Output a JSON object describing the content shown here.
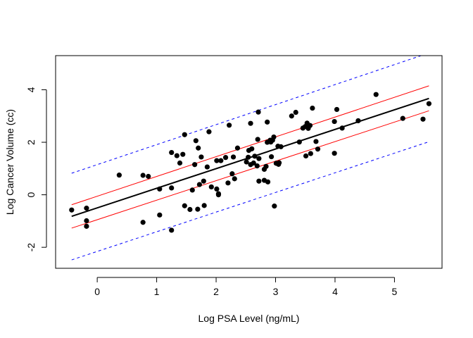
{
  "chart_data": {
    "type": "scatter",
    "title": "",
    "xlabel": "Log PSA Level (ng/mL)",
    "ylabel": "Log Cancer Volume (cc)",
    "xlim": [
      -0.7,
      5.8
    ],
    "ylim": [
      -2.8,
      5.3
    ],
    "xticks": [
      0,
      1,
      2,
      3,
      4,
      5
    ],
    "xtick_labels": [
      "0",
      "1",
      "2",
      "3",
      "4",
      "5"
    ],
    "yticks": [
      -2,
      0,
      2,
      4
    ],
    "ytick_labels": [
      "-2",
      "0",
      "2",
      "4"
    ],
    "grid": false,
    "legend": "none",
    "points": [
      {
        "x": -0.43,
        "y": -0.58
      },
      {
        "x": -0.18,
        "y": -0.51
      },
      {
        "x": -0.18,
        "y": -0.99
      },
      {
        "x": -0.18,
        "y": -1.2
      },
      {
        "x": 0.37,
        "y": 0.75
      },
      {
        "x": 0.77,
        "y": 0.74
      },
      {
        "x": 0.77,
        "y": -1.05
      },
      {
        "x": 0.86,
        "y": 0.7
      },
      {
        "x": 1.05,
        "y": 0.22
      },
      {
        "x": 1.05,
        "y": -0.77
      },
      {
        "x": 1.25,
        "y": 1.61
      },
      {
        "x": 1.25,
        "y": 0.26
      },
      {
        "x": 1.25,
        "y": -1.35
      },
      {
        "x": 1.34,
        "y": 1.49
      },
      {
        "x": 1.39,
        "y": 1.21
      },
      {
        "x": 1.44,
        "y": 1.54
      },
      {
        "x": 1.47,
        "y": 2.29
      },
      {
        "x": 1.47,
        "y": -0.42
      },
      {
        "x": 1.56,
        "y": -0.56
      },
      {
        "x": 1.6,
        "y": 0.18
      },
      {
        "x": 1.64,
        "y": 1.15
      },
      {
        "x": 1.66,
        "y": 2.06
      },
      {
        "x": 1.69,
        "y": -0.55
      },
      {
        "x": 1.7,
        "y": 1.78
      },
      {
        "x": 1.72,
        "y": 0.39
      },
      {
        "x": 1.75,
        "y": 1.44
      },
      {
        "x": 1.79,
        "y": 0.52
      },
      {
        "x": 1.8,
        "y": -0.41
      },
      {
        "x": 1.85,
        "y": 1.06
      },
      {
        "x": 1.88,
        "y": 2.4
      },
      {
        "x": 1.92,
        "y": 0.3
      },
      {
        "x": 2.01,
        "y": 1.3
      },
      {
        "x": 2.01,
        "y": 0.22
      },
      {
        "x": 2.04,
        "y": 0.0
      },
      {
        "x": 2.04,
        "y": 0.04
      },
      {
        "x": 2.08,
        "y": 1.3
      },
      {
        "x": 2.16,
        "y": 1.42
      },
      {
        "x": 2.2,
        "y": 0.45
      },
      {
        "x": 2.22,
        "y": 2.65
      },
      {
        "x": 2.27,
        "y": 0.8
      },
      {
        "x": 2.29,
        "y": 1.44
      },
      {
        "x": 2.31,
        "y": 0.61
      },
      {
        "x": 2.36,
        "y": 1.78
      },
      {
        "x": 2.51,
        "y": 1.25
      },
      {
        "x": 2.54,
        "y": 1.43
      },
      {
        "x": 2.55,
        "y": 1.69
      },
      {
        "x": 2.58,
        "y": 2.72
      },
      {
        "x": 2.58,
        "y": 1.15
      },
      {
        "x": 2.6,
        "y": 1.75
      },
      {
        "x": 2.63,
        "y": 1.21
      },
      {
        "x": 2.65,
        "y": 1.47
      },
      {
        "x": 2.69,
        "y": 1.1
      },
      {
        "x": 2.7,
        "y": 2.11
      },
      {
        "x": 2.71,
        "y": 3.15
      },
      {
        "x": 2.72,
        "y": 1.38
      },
      {
        "x": 2.72,
        "y": 0.52
      },
      {
        "x": 2.81,
        "y": 0.97
      },
      {
        "x": 2.81,
        "y": 0.55
      },
      {
        "x": 2.84,
        "y": 1.08
      },
      {
        "x": 2.86,
        "y": 2.77
      },
      {
        "x": 2.86,
        "y": 2.0
      },
      {
        "x": 2.87,
        "y": 0.49
      },
      {
        "x": 2.91,
        "y": 2.08
      },
      {
        "x": 2.92,
        "y": 2.01
      },
      {
        "x": 2.93,
        "y": 1.45
      },
      {
        "x": 2.95,
        "y": 2.08
      },
      {
        "x": 2.97,
        "y": 2.2
      },
      {
        "x": 2.98,
        "y": -0.43
      },
      {
        "x": 3.01,
        "y": 1.2
      },
      {
        "x": 3.04,
        "y": 1.85
      },
      {
        "x": 3.05,
        "y": 1.16
      },
      {
        "x": 3.06,
        "y": 1.22
      },
      {
        "x": 3.09,
        "y": 1.83
      },
      {
        "x": 3.27,
        "y": 3.0
      },
      {
        "x": 3.34,
        "y": 3.14
      },
      {
        "x": 3.4,
        "y": 2.01
      },
      {
        "x": 3.46,
        "y": 2.54
      },
      {
        "x": 3.5,
        "y": 2.6
      },
      {
        "x": 3.51,
        "y": 1.48
      },
      {
        "x": 3.53,
        "y": 2.73
      },
      {
        "x": 3.55,
        "y": 2.53
      },
      {
        "x": 3.58,
        "y": 2.64
      },
      {
        "x": 3.59,
        "y": 1.57
      },
      {
        "x": 3.62,
        "y": 3.3
      },
      {
        "x": 3.68,
        "y": 2.03
      },
      {
        "x": 3.71,
        "y": 1.74
      },
      {
        "x": 3.99,
        "y": 2.79
      },
      {
        "x": 3.99,
        "y": 1.58
      },
      {
        "x": 4.03,
        "y": 3.25
      },
      {
        "x": 4.12,
        "y": 2.54
      },
      {
        "x": 4.39,
        "y": 2.82
      },
      {
        "x": 4.69,
        "y": 3.82
      },
      {
        "x": 5.14,
        "y": 2.91
      },
      {
        "x": 5.48,
        "y": 2.88
      },
      {
        "x": 5.58,
        "y": 3.47
      }
    ],
    "lines": {
      "fit": [
        [
          -0.43,
          -0.82
        ],
        [
          5.58,
          3.67
        ]
      ],
      "ci_upper": [
        [
          -0.43,
          -0.38
        ],
        [
          5.58,
          4.15
        ]
      ],
      "ci_lower": [
        [
          -0.43,
          -1.27
        ],
        [
          5.58,
          3.2
        ]
      ],
      "pi_upper": [
        [
          -0.43,
          0.82
        ],
        [
          5.58,
          5.4
        ]
      ],
      "pi_lower": [
        [
          -0.43,
          -2.48
        ],
        [
          5.58,
          2.02
        ]
      ]
    },
    "colors": {
      "points": "#000000",
      "fit": "#000000",
      "ci": "#ff0000",
      "pi": "#0000ff"
    }
  }
}
